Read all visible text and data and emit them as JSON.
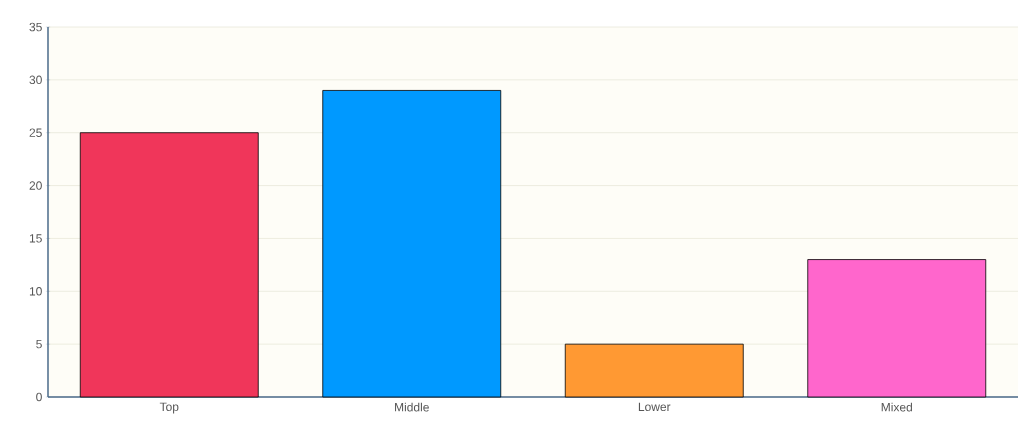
{
  "chart_data": {
    "type": "bar",
    "categories": [
      "Top",
      "Middle",
      "Lower",
      "Mixed"
    ],
    "values": [
      25,
      29,
      5,
      13
    ],
    "colors": [
      "#f0365a",
      "#0099ff",
      "#ff9933",
      "#ff66cc"
    ],
    "ylim": [
      0,
      35
    ],
    "yticks": [
      0,
      5,
      10,
      15,
      20,
      25,
      30,
      35
    ],
    "grid": "y"
  }
}
